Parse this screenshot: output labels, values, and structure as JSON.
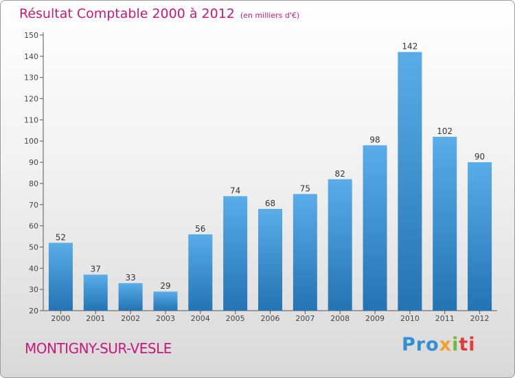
{
  "chart_data": {
    "type": "bar",
    "title": "Résultat Comptable 2000 à 2012",
    "subtitle": "(en milliers d'€)",
    "categories": [
      "2000",
      "2001",
      "2002",
      "2003",
      "2004",
      "2005",
      "2006",
      "2007",
      "2008",
      "2009",
      "2010",
      "2011",
      "2012"
    ],
    "values": [
      52,
      37,
      33,
      29,
      56,
      74,
      68,
      75,
      82,
      98,
      142,
      102,
      90
    ],
    "ylim": [
      20,
      150
    ],
    "yticks": [
      20,
      30,
      40,
      50,
      60,
      70,
      80,
      90,
      100,
      110,
      120,
      130,
      140,
      150
    ],
    "grid": false,
    "bar_color_top": "#5aade8",
    "bar_color_bottom": "#2473b3"
  },
  "footer": {
    "city": "MONTIGNY-SUR-VESLE",
    "logo": [
      "Pro",
      "x",
      "i",
      "ti"
    ]
  },
  "colors": {
    "title": "#c8187a",
    "axis": "#555555",
    "label": "#333333"
  }
}
